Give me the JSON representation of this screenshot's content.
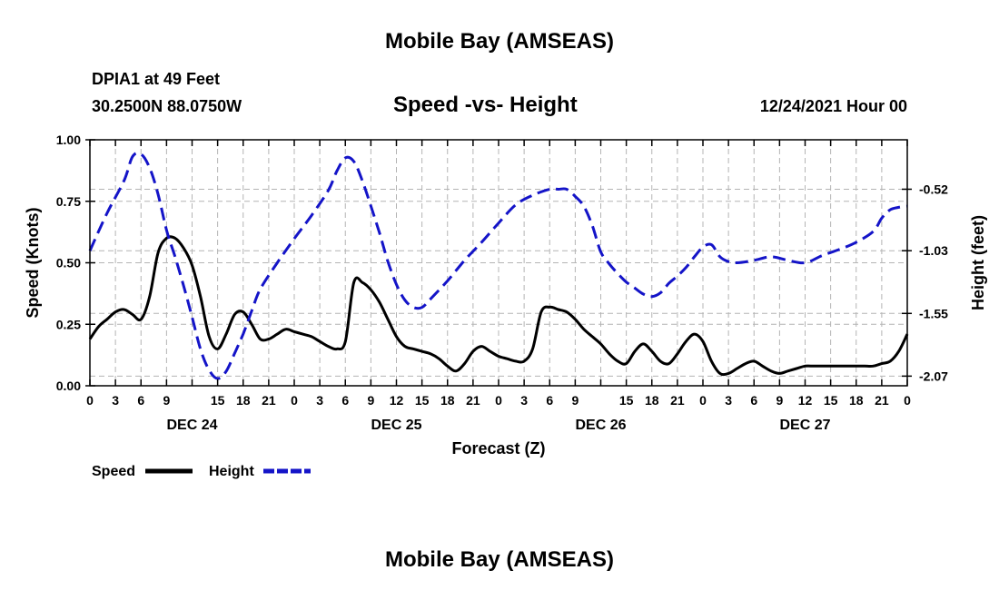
{
  "page": {
    "top_title": "Mobile Bay (AMSEAS)",
    "station": "DPIA1 at 49 Feet",
    "coords": "30.2500N  88.0750W",
    "chart_title": "Speed -vs- Height",
    "datetime": "12/24/2021 Hour 00",
    "bottom_title": "Mobile Bay (AMSEAS)"
  },
  "chart_data": {
    "type": "line",
    "title": "Speed -vs- Height",
    "xlabel": "Forecast (Z)",
    "ylabel": "Speed (Knots)",
    "y2label": "Height (feet)",
    "xlim": [
      0,
      96
    ],
    "ylim": [
      0,
      1.0
    ],
    "y2lim": [
      -2.15,
      -0.11
    ],
    "y_ticks": [
      "0.00",
      "0.25",
      "0.50",
      "0.75",
      "1.00"
    ],
    "y_tick_values": [
      0,
      0.25,
      0.5,
      0.75,
      1.0
    ],
    "y2_ticks": [
      "-2.07",
      "-1.55",
      "-1.03",
      "-0.52"
    ],
    "y2_tick_values": [
      -2.07,
      -1.55,
      -1.03,
      -0.52
    ],
    "x_tick_labels": [
      "0",
      "3",
      "6",
      "9",
      "15",
      "18",
      "21",
      "0",
      "3",
      "6",
      "9",
      "12",
      "15",
      "18",
      "21",
      "0",
      "3",
      "6",
      "9",
      "15",
      "18",
      "21",
      "0",
      "3",
      "6",
      "9",
      "12",
      "15",
      "18",
      "21",
      "0"
    ],
    "x_tick_hours": [
      0,
      3,
      6,
      9,
      15,
      18,
      21,
      24,
      27,
      30,
      33,
      36,
      39,
      42,
      45,
      48,
      51,
      54,
      57,
      63,
      66,
      69,
      72,
      75,
      78,
      81,
      84,
      87,
      90,
      93,
      96
    ],
    "day_labels": [
      "DEC 24",
      "DEC 25",
      "DEC 26",
      "DEC 27"
    ],
    "day_label_hours": [
      12,
      36,
      60,
      84
    ],
    "grid": true,
    "series": [
      {
        "name": "Speed",
        "color": "#000000",
        "style": "solid",
        "axis": "left",
        "x": [
          0,
          1,
          2,
          3,
          4,
          5,
          6,
          7,
          8,
          9,
          10,
          11,
          12,
          13,
          14,
          15,
          16,
          17,
          18,
          19,
          20,
          21,
          22,
          23,
          24,
          25,
          26,
          27,
          28,
          29,
          30,
          31,
          32,
          33,
          34,
          35,
          36,
          37,
          38,
          39,
          40,
          41,
          42,
          43,
          44,
          45,
          46,
          47,
          48,
          49,
          50,
          51,
          52,
          53,
          54,
          55,
          56,
          57,
          58,
          59,
          60,
          61,
          62,
          63,
          64,
          65,
          66,
          67,
          68,
          69,
          70,
          71,
          72,
          73,
          74,
          75,
          76,
          77,
          78,
          79,
          80,
          81,
          82,
          83,
          84,
          85,
          86,
          87,
          88,
          89,
          90,
          91,
          92,
          93,
          94,
          95,
          96
        ],
        "values": [
          0.19,
          0.24,
          0.27,
          0.3,
          0.31,
          0.29,
          0.27,
          0.36,
          0.54,
          0.6,
          0.6,
          0.56,
          0.49,
          0.36,
          0.2,
          0.15,
          0.21,
          0.29,
          0.3,
          0.25,
          0.19,
          0.19,
          0.21,
          0.23,
          0.22,
          0.21,
          0.2,
          0.18,
          0.16,
          0.15,
          0.18,
          0.42,
          0.42,
          0.39,
          0.34,
          0.27,
          0.2,
          0.16,
          0.15,
          0.14,
          0.13,
          0.11,
          0.08,
          0.06,
          0.09,
          0.14,
          0.16,
          0.14,
          0.12,
          0.11,
          0.1,
          0.1,
          0.15,
          0.3,
          0.32,
          0.31,
          0.3,
          0.27,
          0.23,
          0.2,
          0.17,
          0.13,
          0.1,
          0.09,
          0.14,
          0.17,
          0.14,
          0.1,
          0.09,
          0.13,
          0.18,
          0.21,
          0.18,
          0.1,
          0.05,
          0.05,
          0.07,
          0.09,
          0.1,
          0.08,
          0.06,
          0.05,
          0.06,
          0.07,
          0.08,
          0.08,
          0.08,
          0.08,
          0.08,
          0.08,
          0.08,
          0.08,
          0.08,
          0.09,
          0.1,
          0.14,
          0.21
        ]
      },
      {
        "name": "Height",
        "color": "#1414c8",
        "style": "dashed",
        "axis": "right",
        "x": [
          0,
          2,
          4,
          5,
          6,
          7,
          8,
          9,
          10,
          11,
          12,
          13,
          14,
          15,
          16,
          17,
          18,
          19,
          20,
          22,
          24,
          26,
          28,
          29,
          30,
          31,
          32,
          33,
          34,
          35,
          36,
          37,
          38,
          39,
          40,
          42,
          44,
          46,
          48,
          50,
          52,
          54,
          55,
          56,
          57,
          58,
          59,
          60,
          61,
          62,
          63,
          64,
          65,
          66,
          67,
          68,
          69,
          70,
          71,
          72,
          73,
          74,
          75,
          76,
          78,
          80,
          82,
          84,
          86,
          88,
          90,
          92,
          93,
          94,
          95,
          96
        ],
        "values": [
          -1.03,
          -0.72,
          -0.45,
          -0.25,
          -0.23,
          -0.34,
          -0.56,
          -0.86,
          -1.08,
          -1.32,
          -1.58,
          -1.85,
          -2.02,
          -2.09,
          -2.03,
          -1.88,
          -1.72,
          -1.53,
          -1.35,
          -1.13,
          -0.93,
          -0.74,
          -0.53,
          -0.37,
          -0.26,
          -0.29,
          -0.45,
          -0.66,
          -0.88,
          -1.12,
          -1.31,
          -1.44,
          -1.5,
          -1.5,
          -1.43,
          -1.28,
          -1.11,
          -0.96,
          -0.8,
          -0.65,
          -0.57,
          -0.52,
          -0.52,
          -0.52,
          -0.58,
          -0.66,
          -0.82,
          -1.04,
          -1.14,
          -1.22,
          -1.29,
          -1.34,
          -1.39,
          -1.41,
          -1.38,
          -1.3,
          -1.24,
          -1.17,
          -1.08,
          -1.0,
          -0.98,
          -1.08,
          -1.12,
          -1.13,
          -1.11,
          -1.08,
          -1.11,
          -1.13,
          -1.07,
          -1.02,
          -0.96,
          -0.87,
          -0.76,
          -0.69,
          -0.67,
          -0.66
        ]
      }
    ],
    "legend": [
      {
        "label": "Speed",
        "color": "#000000",
        "style": "solid"
      },
      {
        "label": "Height",
        "color": "#1414c8",
        "style": "dashed"
      }
    ]
  }
}
